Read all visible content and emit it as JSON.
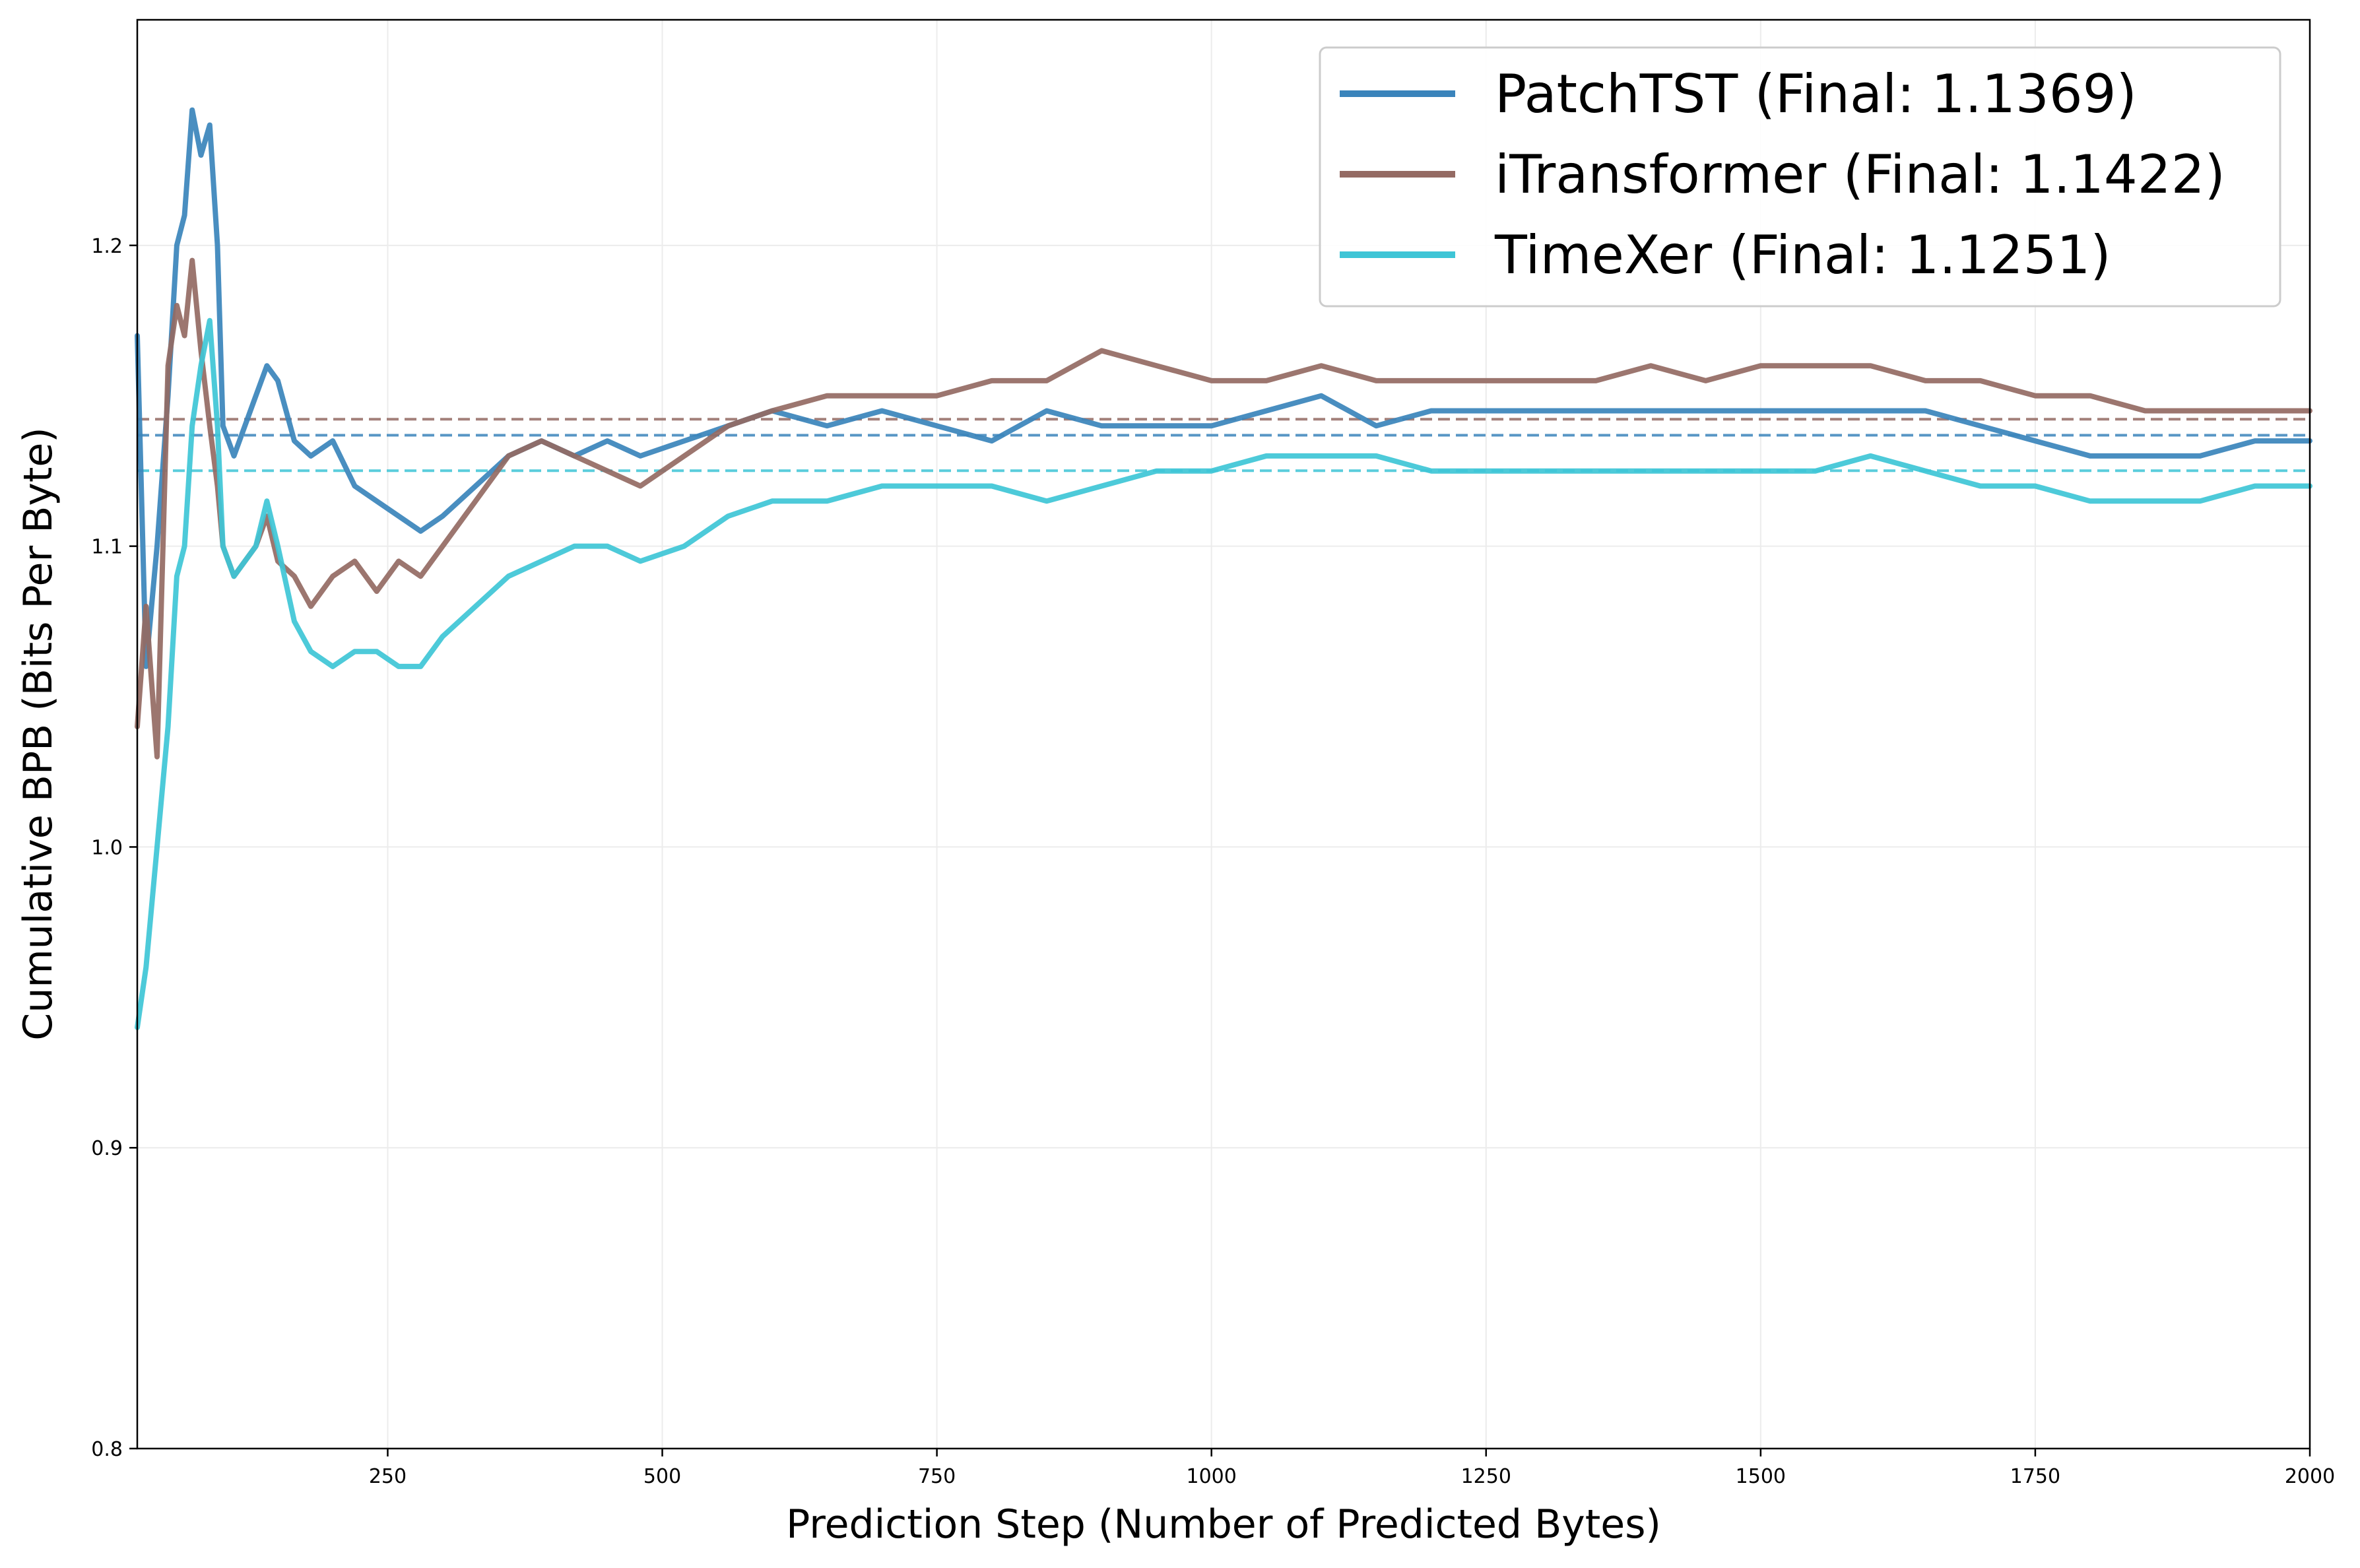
{
  "chart_data": {
    "type": "line",
    "title": "",
    "xlabel": "Prediction Step (Number of Predicted Bytes)",
    "ylabel": "Cumulative BPB (Bits Per Byte)",
    "xlim": [
      22,
      2000
    ],
    "ylim": [
      0.8,
      1.275
    ],
    "x_ticks": [
      250,
      500,
      750,
      1000,
      1250,
      1500,
      1750,
      2000
    ],
    "y_ticks": [
      0.8,
      0.9,
      1.0,
      1.1,
      1.2
    ],
    "x_tick_labels": [
      "250",
      "500",
      "750",
      "1000",
      "1250",
      "1500",
      "1750",
      "2000"
    ],
    "y_tick_labels": [
      "0.8",
      "0.9",
      "1.0",
      "1.1",
      "1.2"
    ],
    "grid": true,
    "legend_position": "top-right",
    "series": [
      {
        "name": "PatchTST (Final: 1.1369)",
        "color": "#3a84bb",
        "final": 1.1369,
        "x": [
          22,
          30,
          40,
          50,
          58,
          65,
          72,
          80,
          88,
          95,
          100,
          110,
          120,
          130,
          140,
          150,
          165,
          180,
          200,
          220,
          240,
          260,
          280,
          300,
          330,
          360,
          390,
          420,
          450,
          480,
          520,
          560,
          600,
          650,
          700,
          750,
          800,
          850,
          900,
          950,
          1000,
          1050,
          1100,
          1150,
          1200,
          1250,
          1300,
          1350,
          1400,
          1450,
          1500,
          1550,
          1600,
          1650,
          1700,
          1750,
          1800,
          1850,
          1900,
          1950,
          2000
        ],
        "y": [
          1.17,
          1.06,
          1.1,
          1.15,
          1.2,
          1.21,
          1.245,
          1.23,
          1.24,
          1.2,
          1.14,
          1.13,
          1.14,
          1.15,
          1.16,
          1.155,
          1.135,
          1.13,
          1.135,
          1.12,
          1.115,
          1.11,
          1.105,
          1.11,
          1.12,
          1.13,
          1.135,
          1.13,
          1.135,
          1.13,
          1.135,
          1.14,
          1.145,
          1.14,
          1.145,
          1.14,
          1.135,
          1.145,
          1.14,
          1.14,
          1.14,
          1.145,
          1.15,
          1.14,
          1.145,
          1.145,
          1.145,
          1.145,
          1.145,
          1.145,
          1.145,
          1.145,
          1.145,
          1.145,
          1.14,
          1.135,
          1.13,
          1.13,
          1.13,
          1.135,
          1.135
        ]
      },
      {
        "name": "iTransformer (Final: 1.1422)",
        "color": "#946a63",
        "final": 1.1422,
        "x": [
          22,
          30,
          40,
          50,
          58,
          65,
          72,
          80,
          88,
          95,
          100,
          110,
          120,
          130,
          140,
          150,
          165,
          180,
          200,
          220,
          240,
          260,
          280,
          300,
          330,
          360,
          390,
          420,
          450,
          480,
          520,
          560,
          600,
          650,
          700,
          750,
          800,
          850,
          900,
          950,
          1000,
          1050,
          1100,
          1150,
          1200,
          1250,
          1300,
          1350,
          1400,
          1450,
          1500,
          1550,
          1600,
          1650,
          1700,
          1750,
          1800,
          1850,
          1900,
          1950,
          2000
        ],
        "y": [
          1.04,
          1.08,
          1.03,
          1.16,
          1.18,
          1.17,
          1.195,
          1.165,
          1.14,
          1.12,
          1.1,
          1.09,
          1.095,
          1.1,
          1.11,
          1.095,
          1.09,
          1.08,
          1.09,
          1.095,
          1.085,
          1.095,
          1.09,
          1.1,
          1.115,
          1.13,
          1.135,
          1.13,
          1.125,
          1.12,
          1.13,
          1.14,
          1.145,
          1.15,
          1.15,
          1.15,
          1.155,
          1.155,
          1.165,
          1.16,
          1.155,
          1.155,
          1.16,
          1.155,
          1.155,
          1.155,
          1.155,
          1.155,
          1.16,
          1.155,
          1.16,
          1.16,
          1.16,
          1.155,
          1.155,
          1.15,
          1.15,
          1.145,
          1.145,
          1.145,
          1.145
        ]
      },
      {
        "name": "TimeXer (Final: 1.1251)",
        "color": "#3ec5d6",
        "final": 1.1251,
        "x": [
          22,
          30,
          40,
          50,
          58,
          65,
          72,
          80,
          88,
          95,
          100,
          110,
          120,
          130,
          140,
          150,
          165,
          180,
          200,
          220,
          240,
          260,
          280,
          300,
          330,
          360,
          390,
          420,
          450,
          480,
          520,
          560,
          600,
          650,
          700,
          750,
          800,
          850,
          900,
          950,
          1000,
          1050,
          1100,
          1150,
          1200,
          1250,
          1300,
          1350,
          1400,
          1450,
          1500,
          1550,
          1600,
          1650,
          1700,
          1750,
          1800,
          1850,
          1900,
          1950,
          2000
        ],
        "y": [
          0.94,
          0.96,
          1.0,
          1.04,
          1.09,
          1.1,
          1.14,
          1.16,
          1.175,
          1.14,
          1.1,
          1.09,
          1.095,
          1.1,
          1.115,
          1.1,
          1.075,
          1.065,
          1.06,
          1.065,
          1.065,
          1.06,
          1.06,
          1.07,
          1.08,
          1.09,
          1.095,
          1.1,
          1.1,
          1.095,
          1.1,
          1.11,
          1.115,
          1.115,
          1.12,
          1.12,
          1.12,
          1.115,
          1.12,
          1.125,
          1.125,
          1.13,
          1.13,
          1.13,
          1.125,
          1.125,
          1.125,
          1.125,
          1.125,
          1.125,
          1.125,
          1.125,
          1.13,
          1.125,
          1.12,
          1.12,
          1.115,
          1.115,
          1.115,
          1.12,
          1.12
        ]
      }
    ]
  }
}
